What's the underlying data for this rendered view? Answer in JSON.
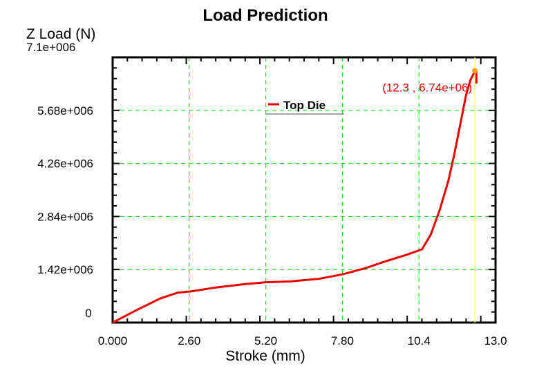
{
  "chart_data": {
    "type": "line",
    "title": "Load Prediction",
    "xlabel": "Stroke (mm)",
    "ylabel": "Z Load (N)",
    "ymax_label": "7.1e+006",
    "xlim": [
      0,
      13.0
    ],
    "ylim": [
      0,
      7100000
    ],
    "xticks": [
      0,
      2.6,
      5.2,
      7.8,
      10.4,
      13.0
    ],
    "xtick_labels": [
      "0.000",
      "2.60",
      "5.20",
      "7.80",
      "10.4",
      "13.0"
    ],
    "yticks": [
      0,
      1420000,
      2840000,
      4260000,
      5680000
    ],
    "ytick_labels": [
      "0",
      "1.42e+006",
      "2.84e+006",
      "4.26e+006",
      "5.68e+006"
    ],
    "grid": true,
    "legend": {
      "position": "top-center",
      "entries": [
        "Top Die"
      ]
    },
    "series": [
      {
        "name": "Top Die",
        "color": "#ee0000",
        "x": [
          0,
          0.8,
          1.6,
          2.2,
          2.7,
          3.5,
          4.5,
          5.2,
          6.0,
          7.0,
          7.8,
          8.6,
          9.3,
          10.0,
          10.5,
          10.8,
          11.1,
          11.4,
          11.6,
          11.8,
          12.0,
          12.15,
          12.25,
          12.3,
          12.35,
          12.35
        ],
        "y": [
          0,
          330000,
          640000,
          800000,
          840000,
          940000,
          1030000,
          1080000,
          1100000,
          1170000,
          1290000,
          1460000,
          1650000,
          1820000,
          1960000,
          2350000,
          3000000,
          3800000,
          4500000,
          5300000,
          6100000,
          6500000,
          6650000,
          6740000,
          6700000,
          6400000
        ]
      }
    ],
    "annotation": {
      "text": "(12.3 , 6.74e+06)",
      "x": 12.3,
      "y": 6740000,
      "color": "#ee0000"
    },
    "marker_line_x": 12.3
  }
}
